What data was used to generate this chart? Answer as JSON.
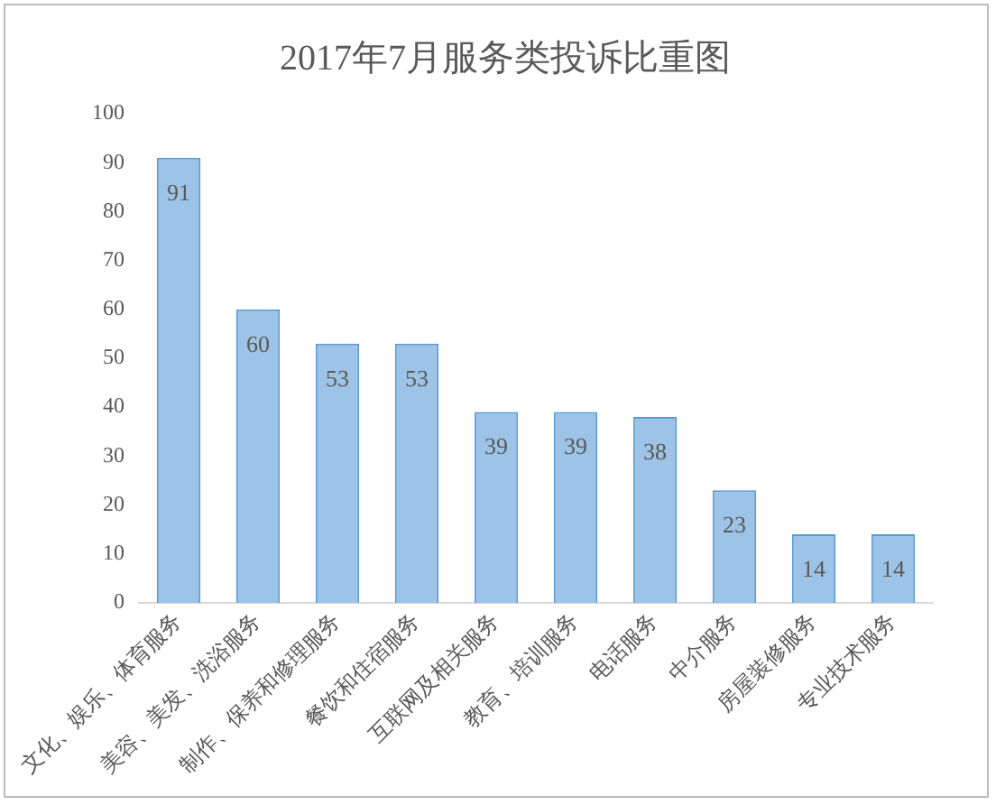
{
  "chart_data": {
    "type": "bar",
    "title": "2017年7月服务类投诉比重图",
    "categories": [
      "文化、娱乐、体育服务",
      "美容、美发、洗浴服务",
      "制作、保养和修理服务",
      "餐饮和住宿服务",
      "互联网及相关服务",
      "教育、培训服务",
      "电话服务",
      "中介服务",
      "房屋装修服务",
      "专业技术服务"
    ],
    "values": [
      91,
      60,
      53,
      53,
      39,
      39,
      38,
      23,
      14,
      14
    ],
    "color": "#9dc3e6",
    "ylim": [
      0,
      100
    ],
    "yticks": [
      0,
      10,
      20,
      30,
      40,
      50,
      60,
      70,
      80,
      90,
      100
    ],
    "grid": false,
    "data_labels": true
  }
}
